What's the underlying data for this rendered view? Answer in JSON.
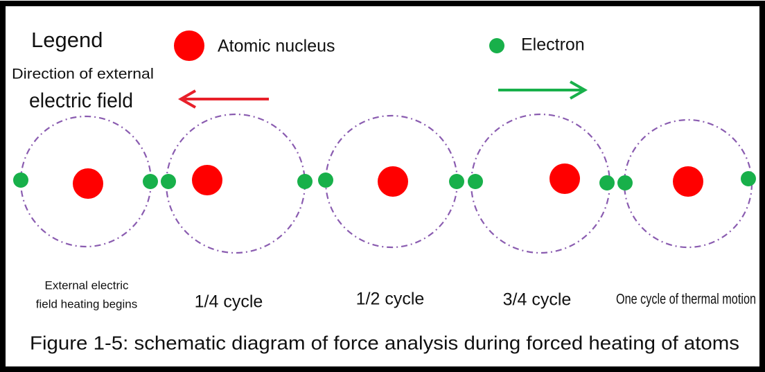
{
  "legend": {
    "title": "Legend",
    "nucleus": "Atomic nucleus",
    "electron": "Electron",
    "field_direction": [
      "Direction of external",
      "electric field"
    ]
  },
  "stages": [
    {
      "label": [
        "External electric",
        "field heating begins"
      ]
    },
    {
      "label": [
        "1/4 cycle"
      ]
    },
    {
      "label": [
        "1/2 cycle"
      ]
    },
    {
      "label": [
        "3/4 cycle"
      ]
    },
    {
      "label": [
        "One cycle of thermal motion"
      ]
    }
  ],
  "caption": "Figure 1-5: schematic diagram of force analysis during forced heating of atoms"
}
